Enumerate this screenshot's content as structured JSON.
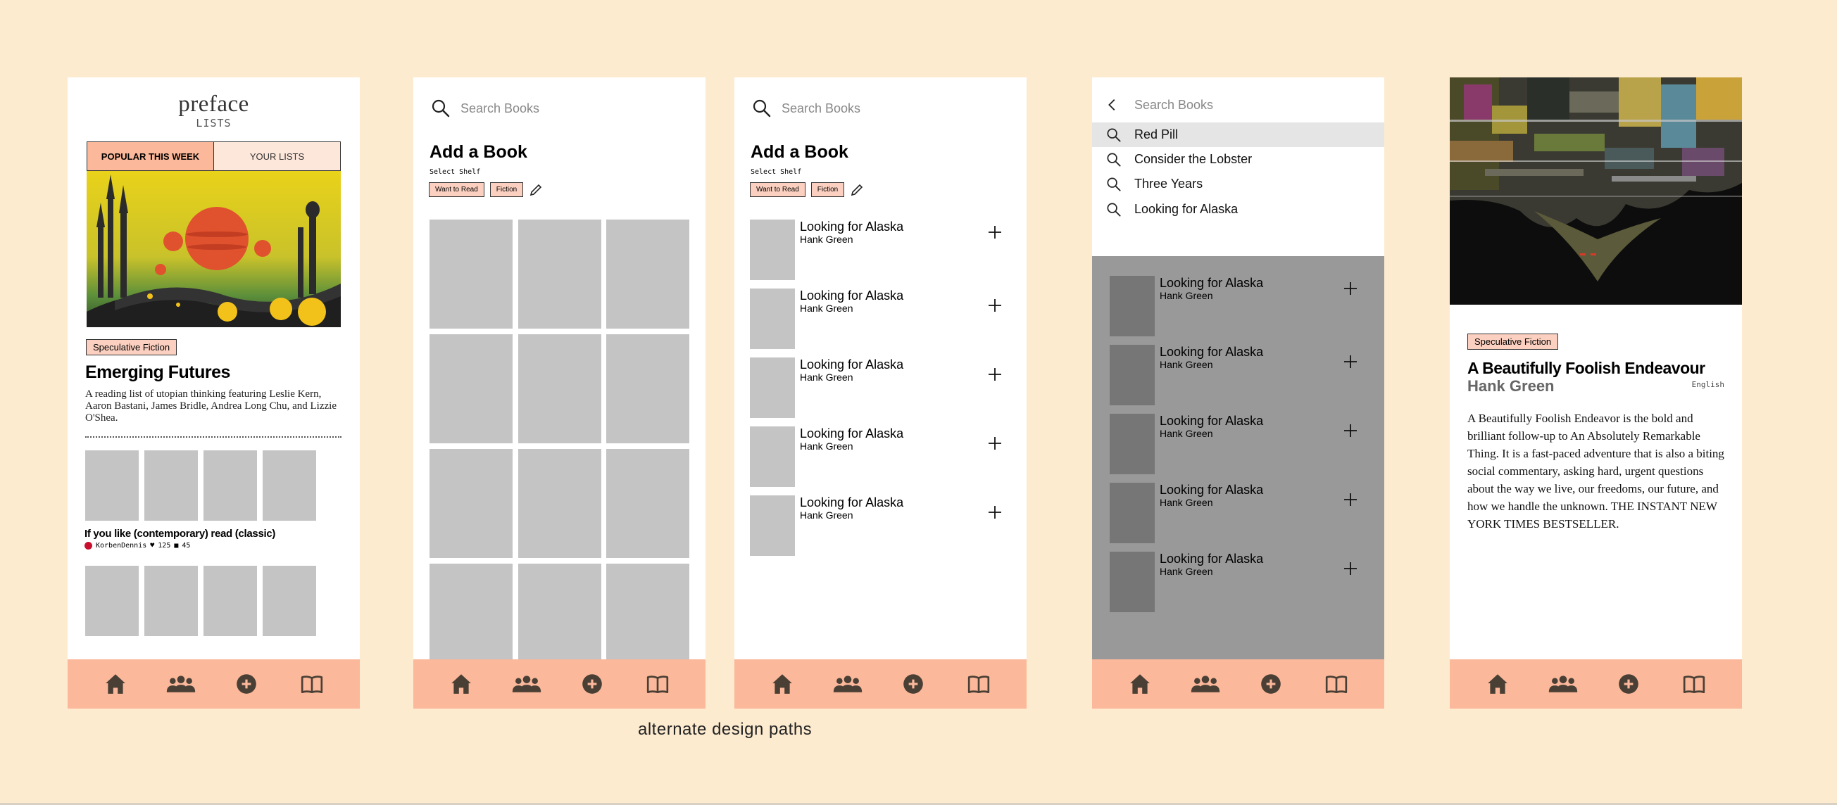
{
  "caption": "alternate design paths",
  "icons": {
    "nav": [
      "home-icon",
      "community-icon",
      "add-icon",
      "library-icon"
    ],
    "search": "search-icon",
    "back": "back-arrow-icon",
    "add": "plus-icon",
    "edit": "pencil-icon"
  },
  "colors": {
    "background": "#fdebd0",
    "accent": "#fbb89a",
    "chip": "#fbd0c0",
    "placeholder": "#c4c4c4"
  },
  "screen1": {
    "logo": "preface",
    "logo_sub": "LISTS",
    "tabs": [
      "POPULAR THIS WEEK",
      "YOUR LISTS"
    ],
    "tag": "Speculative Fiction",
    "list_title": "Emerging Futures",
    "list_desc": "A reading list of utopian thinking featuring Leslie Kern, Aaron Bastani, James Bridle, Andrea Long Chu, and Lizzie O'Shea.",
    "second_list_title": "If you like (contemporary) read (classic)",
    "second_list_user": "KorbenDennis",
    "second_list_likes": "125",
    "second_list_comments": "45"
  },
  "screen2": {
    "search_placeholder": "Search Books",
    "heading": "Add a Book",
    "shelf_label": "Select Shelf",
    "chips": [
      "Want to Read",
      "Fiction"
    ]
  },
  "screen3": {
    "search_placeholder": "Search Books",
    "heading": "Add a Book",
    "shelf_label": "Select Shelf",
    "chips": [
      "Want to Read",
      "Fiction"
    ],
    "books": [
      {
        "title": "Looking for Alaska",
        "author": "Hank Green"
      },
      {
        "title": "Looking for Alaska",
        "author": "Hank Green"
      },
      {
        "title": "Looking for Alaska",
        "author": "Hank Green"
      },
      {
        "title": "Looking for Alaska",
        "author": "Hank Green"
      },
      {
        "title": "Looking for Alaska",
        "author": "Hank Green"
      }
    ]
  },
  "screen4": {
    "search_placeholder": "Search Books",
    "suggestions": [
      "Red Pill",
      "Consider the Lobster",
      "Three Years",
      "Looking for Alaska"
    ],
    "books": [
      {
        "title": "Looking for Alaska",
        "author": "Hank Green"
      },
      {
        "title": "Looking for Alaska",
        "author": "Hank Green"
      },
      {
        "title": "Looking for Alaska",
        "author": "Hank Green"
      },
      {
        "title": "Looking for Alaska",
        "author": "Hank Green"
      },
      {
        "title": "Looking for Alaska",
        "author": "Hank Green"
      }
    ]
  },
  "screen5": {
    "tag": "Speculative Fiction",
    "title": "A Beautifully Foolish Endeavour",
    "author": "Hank Green",
    "language": "English",
    "description": "A Beautifully Foolish Endeavor is the bold and brilliant follow-up to An Absolutely Remarkable Thing. It is a fast-paced adventure that is also a biting social commentary, asking hard, urgent questions about the way we live, our freedoms, our future, and how we handle the unknown. THE INSTANT NEW YORK TIMES BESTSELLER."
  }
}
